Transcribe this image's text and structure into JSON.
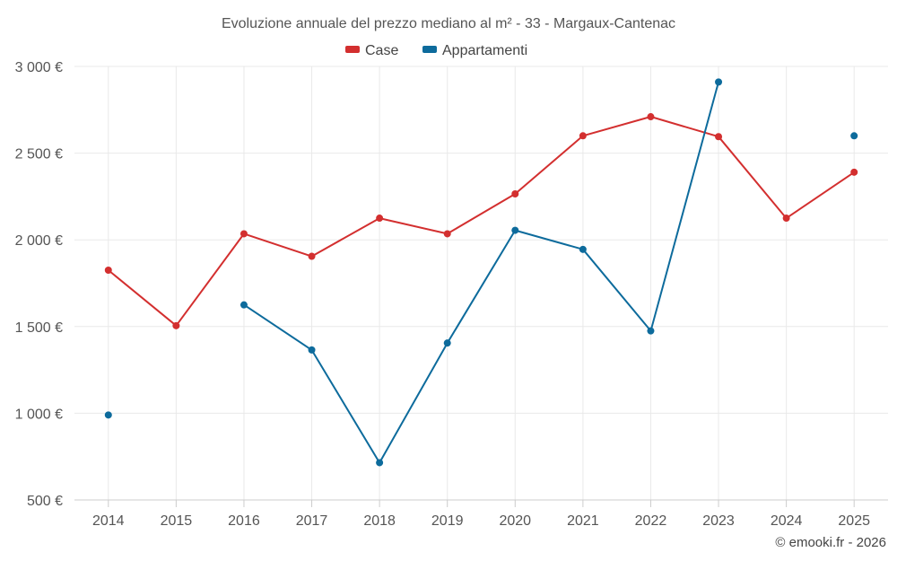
{
  "chart_data": {
    "type": "line",
    "title": "Evoluzione annuale del prezzo mediano al m² - 33 - Margaux-Cantenac",
    "categories": [
      "2014",
      "2015",
      "2016",
      "2017",
      "2018",
      "2019",
      "2020",
      "2021",
      "2022",
      "2023",
      "2024",
      "2025"
    ],
    "ylim": [
      500,
      3000
    ],
    "yticks": [
      500,
      1000,
      1500,
      2000,
      2500,
      3000
    ],
    "ytick_labels": [
      "500 €",
      "1 000 €",
      "1 500 €",
      "2 000 €",
      "2 500 €",
      "3 000 €"
    ],
    "series": [
      {
        "name": "Case",
        "color": "#d32f2f",
        "values": [
          1825,
          1505,
          2035,
          1905,
          2125,
          2035,
          2265,
          2600,
          2710,
          2595,
          2125,
          2390
        ]
      },
      {
        "name": "Appartamenti",
        "color": "#0d6b9c",
        "values": [
          990,
          null,
          1625,
          1365,
          715,
          1405,
          2055,
          1945,
          1475,
          2910,
          null,
          2600
        ]
      }
    ],
    "credit": "© emooki.fr - 2026"
  }
}
